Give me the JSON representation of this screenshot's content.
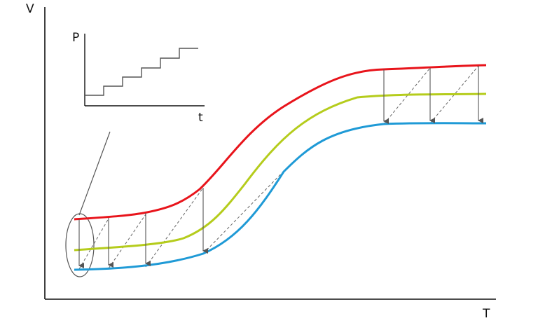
{
  "axes": {
    "y_label": "V",
    "x_label": "T"
  },
  "inset": {
    "y_label": "P",
    "x_label": "t"
  },
  "colors": {
    "axis": "#111111",
    "top_curve": "#e8141b",
    "middle_curve": "#b5cc1c",
    "bottom_curve": "#1f9ad6",
    "arrow": "#555555",
    "dashed": "#666666",
    "callout": "#555555"
  },
  "curves": [
    "top-curve",
    "middle-curve",
    "bottom-curve"
  ]
}
